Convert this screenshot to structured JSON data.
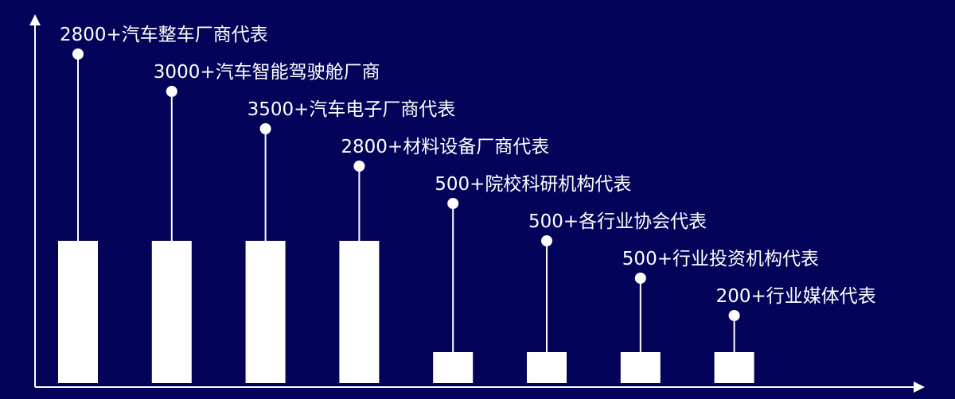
{
  "chart_data": {
    "type": "bar",
    "title": "",
    "xlabel": "",
    "ylabel": "",
    "grid": false,
    "categories": [
      "2800+汽车整车厂商代表",
      "3000+汽车智能驾驶舱厂商",
      "3500+汽车电子厂商代表",
      "2800+材料设备厂商代表",
      "500+院校科研机构代表",
      "500+各行业协会代表",
      "500+行业投资机构代表",
      "200+行业媒体代表"
    ],
    "values": [
      2800,
      3000,
      3500,
      2800,
      500,
      500,
      500,
      200
    ],
    "bar_tier": [
      "tall",
      "tall",
      "tall",
      "tall",
      "short",
      "short",
      "short",
      "short"
    ],
    "colors": {
      "background": "#03035a",
      "bars": "#ffffff",
      "axes": "#ffffff",
      "text": "#ffffff"
    }
  }
}
